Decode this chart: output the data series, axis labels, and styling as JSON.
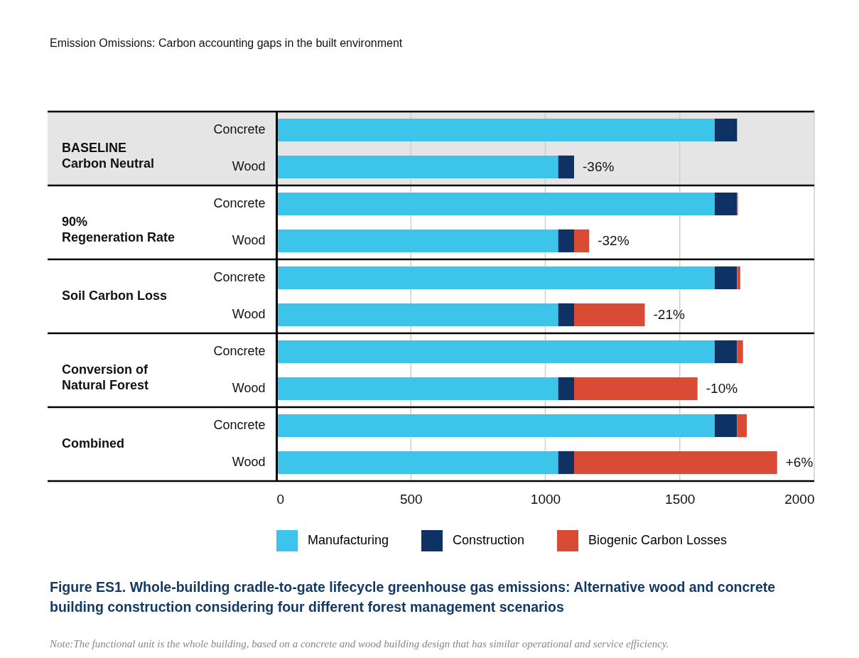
{
  "chart_data": {
    "type": "bar",
    "orientation": "horizontal",
    "stacked": true,
    "title": "Figure ES1. Whole-building cradle-to-gate lifecycle greenhouse gas emissions: Alternative wood and concrete building construction considering four different forest management scenarios",
    "categories": [
      "Concrete",
      "Wood",
      "Concrete",
      "Wood",
      "Concrete",
      "Wood",
      "Concrete",
      "Wood",
      "Concrete",
      "Wood"
    ],
    "series": [
      {
        "name": "Manufacturing",
        "color": "#3dc4ea",
        "values": [
          1630,
          1048,
          1630,
          1048,
          1630,
          1048,
          1630,
          1048,
          1630,
          1048
        ]
      },
      {
        "name": "Construction",
        "color": "#0e3263",
        "values": [
          83,
          59,
          83,
          59,
          83,
          59,
          83,
          59,
          83,
          59
        ]
      },
      {
        "name": "Biogenic Carbon Losses",
        "color": "#da4b35",
        "values": [
          0,
          0,
          3,
          56,
          12,
          263,
          22,
          459,
          36,
          755
        ]
      }
    ],
    "xlim": [
      0,
      2000
    ],
    "xticks": [
      0,
      500,
      1000,
      1500,
      2000
    ],
    "grid": "x",
    "legend": "bottom",
    "bands": [
      {
        "axis": "y",
        "from": "Concrete",
        "to": "Wood",
        "color": "#e5e5e5"
      }
    ],
    "annotations": [
      "Emission Omissions: Carbon accounting gaps in the built environment",
      "BASELINE\nCarbon Neutral",
      "90%\nRegeneration Rate",
      "Soil Carbon Loss",
      "Conversion of\nNatural Forest",
      "Combined",
      "-36%",
      "-32%",
      "-21%",
      "-10%",
      "+6%",
      "Note:The functional unit is the whole building, based on a concrete and wood building design that has similar operational and service efficiency."
    ]
  }
}
